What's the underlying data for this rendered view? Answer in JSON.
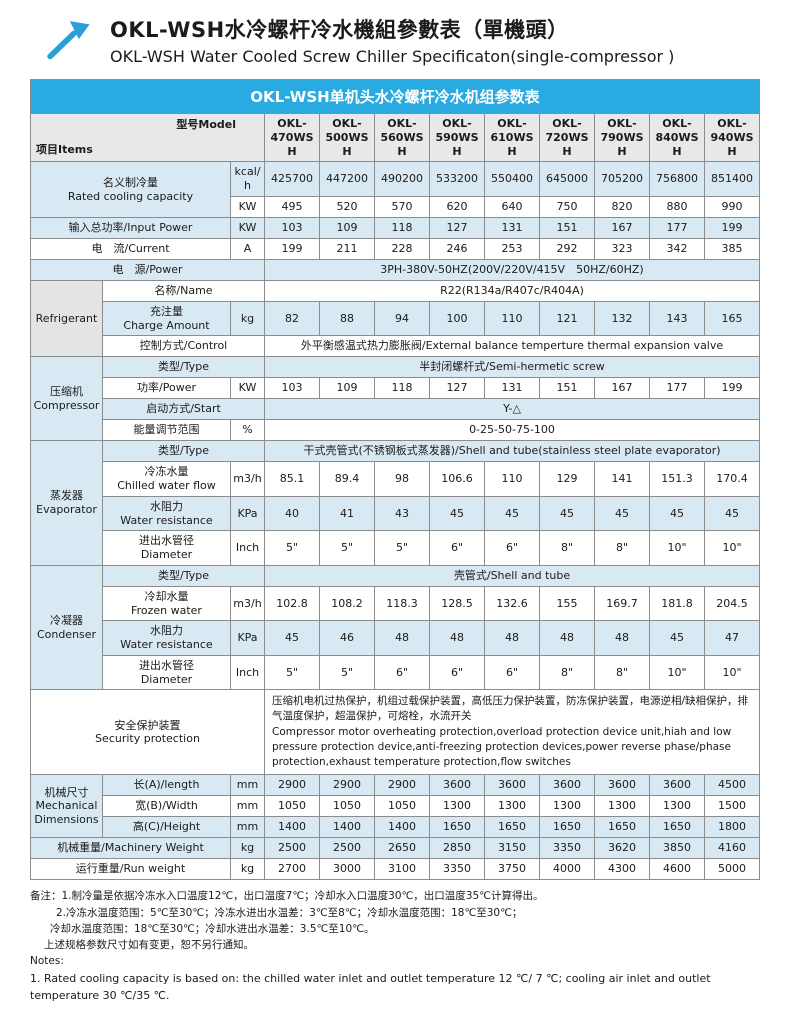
{
  "header": {
    "title_zh": "OKL-WSH水冷螺杆冷水機組參數表（單機頭）",
    "title_en": "OKL-WSH Water Cooled Screw Chiller Specificaton(single-compressor )"
  },
  "table": {
    "title": "OKL-WSH单机头水冷螺杆冷水机组参数表",
    "corner": {
      "items": "项目Items",
      "model": "型号Model"
    },
    "models": [
      "OKL-470WSH",
      "OKL-500WSH",
      "OKL-560WSH",
      "OKL-590WSH",
      "OKL-610WSH",
      "OKL-720WSH",
      "OKL-790WSH",
      "OKL-840WSH",
      "OKL-940WSH"
    ],
    "rows": [
      {
        "shade": true,
        "cells": [
          {
            "t": [
              "名义制冷量",
              "Rated cooling capacity"
            ],
            "cs": 2,
            "rs": 2,
            "cls": "lbl"
          },
          {
            "t": "kcal/h",
            "cls": "unit"
          },
          "425700",
          "447200",
          "490200",
          "533200",
          "550400",
          "645000",
          "705200",
          "756800",
          "851400"
        ]
      },
      {
        "shade": false,
        "cells": [
          {
            "t": "KW",
            "cls": "unit"
          },
          "495",
          "520",
          "570",
          "620",
          "640",
          "750",
          "820",
          "880",
          "990"
        ]
      },
      {
        "shade": true,
        "cells": [
          {
            "t": "输入总功率/Input Power",
            "cs": 2,
            "cls": "lbl"
          },
          {
            "t": "KW",
            "cls": "unit"
          },
          "103",
          "109",
          "118",
          "127",
          "131",
          "151",
          "167",
          "177",
          "199"
        ]
      },
      {
        "shade": false,
        "cells": [
          {
            "t": "电　流/Current",
            "cs": 2,
            "cls": "lbl"
          },
          {
            "t": "A",
            "cls": "unit"
          },
          "199",
          "211",
          "228",
          "246",
          "253",
          "292",
          "323",
          "342",
          "385"
        ]
      },
      {
        "shade": true,
        "cells": [
          {
            "t": "电　源/Power",
            "cs": 3,
            "cls": "lbl"
          },
          {
            "t": "3PH-380V-50HZ(200V/220V/415V　50HZ/60HZ)",
            "cs": 9,
            "cls": "wide"
          }
        ]
      },
      {
        "shade": false,
        "cells": [
          {
            "t": [
              "Refrigerant"
            ],
            "rs": 3,
            "cls": "cat"
          },
          {
            "t": "名称/Name",
            "cs": 2,
            "cls": "lbl"
          },
          {
            "t": "R22(R134a/R407c/R404A)",
            "cs": 9,
            "cls": "wide"
          }
        ]
      },
      {
        "shade": true,
        "cells": [
          {
            "t": [
              "充注量",
              "Charge Amount"
            ],
            "cls": "lbl"
          },
          {
            "t": "kg",
            "cls": "unit"
          },
          "82",
          "88",
          "94",
          "100",
          "110",
          "121",
          "132",
          "143",
          "165"
        ]
      },
      {
        "shade": false,
        "cells": [
          {
            "t": "控制方式/Control",
            "cs": 2,
            "cls": "lbl"
          },
          {
            "t": "外平衡感温式热力膨胀阀/External balance temperture thermal expansion valve",
            "cs": 9,
            "cls": "wide"
          }
        ]
      },
      {
        "shade": true,
        "cells": [
          {
            "t": [
              "压缩机",
              "Compressor"
            ],
            "rs": 4,
            "cls": "cat"
          },
          {
            "t": "类型/Type",
            "cs": 2,
            "cls": "lbl"
          },
          {
            "t": "半封闭螺杆式/Semi-hermetic screw",
            "cs": 9,
            "cls": "wide"
          }
        ]
      },
      {
        "shade": false,
        "cells": [
          {
            "t": "功率/Power",
            "cls": "lbl"
          },
          {
            "t": "KW",
            "cls": "unit"
          },
          "103",
          "109",
          "118",
          "127",
          "131",
          "151",
          "167",
          "177",
          "199"
        ]
      },
      {
        "shade": true,
        "cells": [
          {
            "t": "启动方式/Start",
            "cs": 2,
            "cls": "lbl"
          },
          {
            "t": "Y-△",
            "cs": 9,
            "cls": "wide"
          }
        ]
      },
      {
        "shade": false,
        "cells": [
          {
            "t": "能量调节范围",
            "cls": "lbl"
          },
          {
            "t": "%",
            "cls": "unit"
          },
          {
            "t": "0-25-50-75-100",
            "cs": 9,
            "cls": "wide"
          }
        ]
      },
      {
        "shade": true,
        "cells": [
          {
            "t": [
              "蒸发器",
              "Evaporator"
            ],
            "rs": 4,
            "cls": "cat"
          },
          {
            "t": "类型/Type",
            "cs": 2,
            "cls": "lbl"
          },
          {
            "t": "干式壳管式(不锈钢板式蒸发器)/Shell and tube(stainless steel plate evaporator)",
            "cs": 9,
            "cls": "wide"
          }
        ]
      },
      {
        "shade": false,
        "cells": [
          {
            "t": [
              "冷冻水量",
              "Chilled water flow"
            ],
            "cls": "lbl"
          },
          {
            "t": "m3/h",
            "cls": "unit"
          },
          "85.1",
          "89.4",
          "98",
          "106.6",
          "110",
          "129",
          "141",
          "151.3",
          "170.4"
        ]
      },
      {
        "shade": true,
        "cells": [
          {
            "t": [
              "水阻力",
              "Water resistance"
            ],
            "cls": "lbl"
          },
          {
            "t": "KPa",
            "cls": "unit"
          },
          "40",
          "41",
          "43",
          "45",
          "45",
          "45",
          "45",
          "45",
          "45"
        ]
      },
      {
        "shade": false,
        "cells": [
          {
            "t": [
              "进出水管径",
              "Diameter"
            ],
            "cls": "lbl"
          },
          {
            "t": "Inch",
            "cls": "unit"
          },
          "5\"",
          "5\"",
          "5\"",
          "6\"",
          "6\"",
          "8\"",
          "8\"",
          "10\"",
          "10\""
        ]
      },
      {
        "shade": true,
        "cells": [
          {
            "t": [
              "冷凝器",
              "Condenser"
            ],
            "rs": 4,
            "cls": "cat"
          },
          {
            "t": "类型/Type",
            "cs": 2,
            "cls": "lbl"
          },
          {
            "t": "壳管式/Shell and tube",
            "cs": 9,
            "cls": "wide"
          }
        ]
      },
      {
        "shade": false,
        "cells": [
          {
            "t": [
              "冷却水量",
              "Frozen water"
            ],
            "cls": "lbl"
          },
          {
            "t": "m3/h",
            "cls": "unit"
          },
          "102.8",
          "108.2",
          "118.3",
          "128.5",
          "132.6",
          "155",
          "169.7",
          "181.8",
          "204.5"
        ]
      },
      {
        "shade": true,
        "cells": [
          {
            "t": [
              "水阻力",
              "Water resistance"
            ],
            "cls": "lbl"
          },
          {
            "t": "KPa",
            "cls": "unit"
          },
          "45",
          "46",
          "48",
          "48",
          "48",
          "48",
          "48",
          "45",
          "47"
        ]
      },
      {
        "shade": false,
        "cells": [
          {
            "t": [
              "进出水管径",
              "Diameter"
            ],
            "cls": "lbl"
          },
          {
            "t": "Inch",
            "cls": "unit"
          },
          "5\"",
          "5\"",
          "6\"",
          "6\"",
          "6\"",
          "8\"",
          "8\"",
          "10\"",
          "10\""
        ]
      },
      {
        "shade": false,
        "cells": [
          {
            "t": [
              "安全保护装置",
              "Security protection"
            ],
            "cs": 3,
            "cls": "lbl"
          },
          {
            "t": [
              "压缩机电机过热保护，机组过载保护装置，高低压力保护装置，防冻保护装置，电源逆相/缺相保护，排气温度保护，超温保护，可熔栓，水流开关",
              "Compressor motor overheating protection,overload protection device unit,hiah and low pressure protection device,anti-freezing protection devices,power reverse phase/phase protection,exhaust temperature protection,flow switches"
            ],
            "cs": 9,
            "cls": "sec"
          }
        ]
      },
      {
        "shade": true,
        "cells": [
          {
            "t": [
              "机械尺寸",
              "Mechanical",
              "Dimensions"
            ],
            "rs": 3,
            "cls": "cat"
          },
          {
            "t": "长(A)/length",
            "cls": "lbl"
          },
          {
            "t": "mm",
            "cls": "unit"
          },
          "2900",
          "2900",
          "2900",
          "3600",
          "3600",
          "3600",
          "3600",
          "3600",
          "4500"
        ]
      },
      {
        "shade": false,
        "cells": [
          {
            "t": "宽(B)/Width",
            "cls": "lbl"
          },
          {
            "t": "mm",
            "cls": "unit"
          },
          "1050",
          "1050",
          "1050",
          "1300",
          "1300",
          "1300",
          "1300",
          "1300",
          "1500"
        ]
      },
      {
        "shade": true,
        "cells": [
          {
            "t": "高(C)/Height",
            "cls": "lbl"
          },
          {
            "t": "mm",
            "cls": "unit"
          },
          "1400",
          "1400",
          "1400",
          "1650",
          "1650",
          "1650",
          "1650",
          "1650",
          "1800"
        ]
      },
      {
        "shade": true,
        "cells": [
          {
            "t": "机械重量/Machinery Weight",
            "cs": 2,
            "cls": "lbl"
          },
          {
            "t": "kg",
            "cls": "unit"
          },
          "2500",
          "2500",
          "2650",
          "2850",
          "3150",
          "3350",
          "3620",
          "3850",
          "4160"
        ]
      },
      {
        "shade": false,
        "cells": [
          {
            "t": "运行重量/Run weight",
            "cs": 2,
            "cls": "lbl"
          },
          {
            "t": "kg",
            "cls": "unit"
          },
          "2700",
          "3000",
          "3100",
          "3350",
          "3750",
          "4000",
          "4300",
          "4600",
          "5000"
        ]
      }
    ]
  },
  "notes": {
    "lines": [
      "备注：1.制冷量是依据冷冻水入口温度12℃，出口温度7℃；冷却水入口温度30℃，出口温度35℃计算得出。",
      "2.冷冻水温度范围：5℃至30℃；冷冻水进出水温差：3℃至8℃；冷却水温度范围：18℃至30℃；",
      "冷却水温度范围：18℃至30℃；冷却水进出水温差：3.5℃至10℃。",
      "上述规格参数尺寸如有变更，恕不另行通知。",
      "Notes:",
      "1. Rated cooling capacity is based on: the chilled water inlet and outlet temperature 12 ℃/ 7 ℃; cooling air inlet and outlet temperature 30 ℃/35 ℃."
    ]
  },
  "colors": {
    "accent_blue": "#29abe2",
    "row_shade_blue": "#d9e9f3",
    "header_gray": "#e7e8e8",
    "category_gray": "#e3e4e4",
    "logo_blue": "#2b9fd9"
  }
}
